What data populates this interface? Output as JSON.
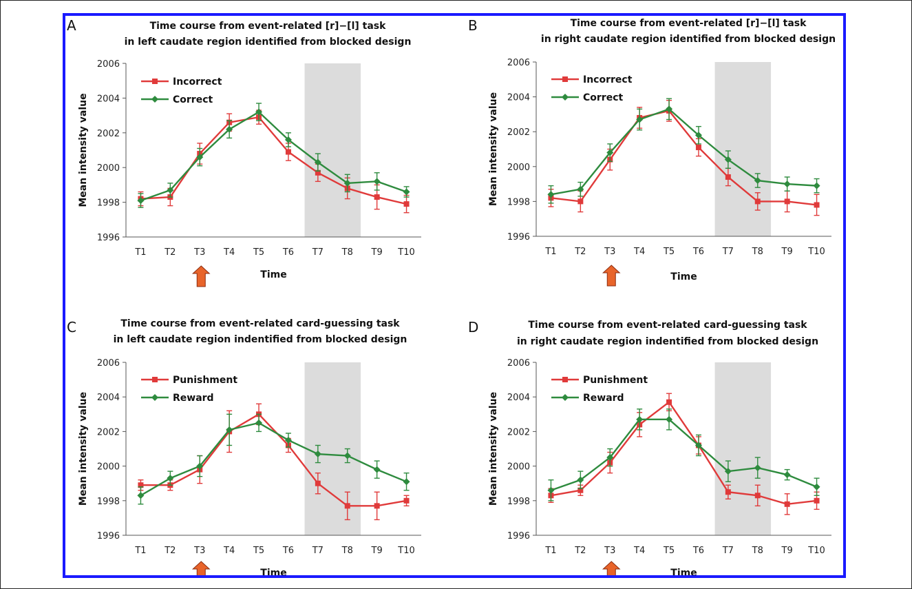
{
  "colors": {
    "red": "#e03a3a",
    "green": "#2e8b3e",
    "shade": "#dcdcdc",
    "arrow": "#e8642a",
    "border": "#1a1aff"
  },
  "chart_data": [
    {
      "type": "line",
      "panel": "A",
      "title": [
        "Time course from event-related [r]−[l]  task",
        "in left caudate region identified from blocked design"
      ],
      "xlabel": "Time",
      "ylabel": "Mean intensity value",
      "categories": [
        "T1",
        "T2",
        "T3",
        "T4",
        "T5",
        "T6",
        "T7",
        "T8",
        "T9",
        "T10"
      ],
      "ylim": [
        1996,
        2006
      ],
      "yticks": [
        "1996",
        "1998",
        "2000",
        "2002",
        "2004",
        "2006"
      ],
      "shaded_range": [
        "T7",
        "T8"
      ],
      "arrow_at": "T3",
      "legend_position": "top-left",
      "series": [
        {
          "name": "Incorrect",
          "color": "red",
          "marker": "square",
          "values": [
            1998.2,
            1998.3,
            2000.8,
            2002.6,
            2002.9,
            2000.9,
            1999.7,
            1998.8,
            1998.3,
            1997.9
          ],
          "errors": [
            0.4,
            0.5,
            0.6,
            0.5,
            0.4,
            0.5,
            0.5,
            0.6,
            0.7,
            0.5
          ]
        },
        {
          "name": "Correct",
          "color": "green",
          "marker": "diamond",
          "values": [
            1998.1,
            1998.7,
            2000.6,
            2002.2,
            2003.2,
            2001.6,
            2000.3,
            1999.1,
            1999.2,
            1998.6
          ],
          "errors": [
            0.4,
            0.4,
            0.5,
            0.5,
            0.5,
            0.4,
            0.5,
            0.5,
            0.5,
            0.3
          ]
        }
      ]
    },
    {
      "type": "line",
      "panel": "B",
      "title": [
        "Time course from event-related [r]−[l]  task",
        "in right caudate region identified from blocked design"
      ],
      "xlabel": "Time",
      "ylabel": "Mean intensity value",
      "categories": [
        "T1",
        "T2",
        "T3",
        "T4",
        "T5",
        "T6",
        "T7",
        "T8",
        "T9",
        "T10"
      ],
      "ylim": [
        1996,
        2006
      ],
      "yticks": [
        "1996",
        "1998",
        "2000",
        "2002",
        "2004",
        "2006"
      ],
      "shaded_range": [
        "T7",
        "T8"
      ],
      "arrow_at": "T3",
      "legend_position": "top-left",
      "series": [
        {
          "name": "Incorrect",
          "color": "red",
          "marker": "square",
          "values": [
            1998.2,
            1998.0,
            2000.4,
            2002.8,
            2003.2,
            2001.1,
            1999.4,
            1998.0,
            1998.0,
            1997.8
          ],
          "errors": [
            0.5,
            0.6,
            0.6,
            0.6,
            0.6,
            0.5,
            0.5,
            0.5,
            0.6,
            0.6
          ]
        },
        {
          "name": "Correct",
          "color": "green",
          "marker": "diamond",
          "values": [
            1998.4,
            1998.7,
            2000.8,
            2002.7,
            2003.3,
            2001.8,
            2000.4,
            1999.2,
            1999.0,
            1998.9
          ],
          "errors": [
            0.5,
            0.4,
            0.5,
            0.6,
            0.6,
            0.5,
            0.5,
            0.4,
            0.4,
            0.4
          ]
        }
      ]
    },
    {
      "type": "line",
      "panel": "C",
      "title": [
        "Time course from event-related card-guessing task",
        "in left caudate region indentified from blocked design"
      ],
      "xlabel": "Time",
      "ylabel": "Mean intensity value",
      "categories": [
        "T1",
        "T2",
        "T3",
        "T4",
        "T5",
        "T6",
        "T7",
        "T8",
        "T9",
        "T10"
      ],
      "ylim": [
        1996,
        2006
      ],
      "yticks": [
        "1996",
        "1998",
        "2000",
        "2002",
        "2004",
        "2006"
      ],
      "shaded_range": [
        "T7",
        "T8"
      ],
      "arrow_at": "T3",
      "legend_position": "top-left",
      "series": [
        {
          "name": "Punishment",
          "color": "red",
          "marker": "square",
          "values": [
            1998.9,
            1998.9,
            1999.8,
            2002.0,
            2003.0,
            2001.2,
            1999.0,
            1997.7,
            1997.7,
            1998.0
          ],
          "errors": [
            0.3,
            0.3,
            0.8,
            1.2,
            0.6,
            0.4,
            0.6,
            0.8,
            0.8,
            0.3
          ]
        },
        {
          "name": "Reward",
          "color": "green",
          "marker": "diamond",
          "values": [
            1998.3,
            1999.3,
            2000.0,
            2002.1,
            2002.5,
            2001.5,
            2000.7,
            2000.6,
            1999.8,
            1999.1
          ],
          "errors": [
            0.5,
            0.4,
            0.6,
            0.9,
            0.5,
            0.4,
            0.5,
            0.4,
            0.5,
            0.5
          ]
        }
      ]
    },
    {
      "type": "line",
      "panel": "D",
      "title": [
        "Time course from event-related card-guessing task",
        "in right caudate region indentified from blocked design"
      ],
      "xlabel": "Time",
      "ylabel": "Mean intensity value",
      "categories": [
        "T1",
        "T2",
        "T3",
        "T4",
        "T5",
        "T6",
        "T7",
        "T8",
        "T9",
        "T10"
      ],
      "ylim": [
        1996,
        2006
      ],
      "yticks": [
        "1996",
        "1998",
        "2000",
        "2002",
        "2004",
        "2006"
      ],
      "shaded_range": [
        "T7",
        "T8"
      ],
      "arrow_at": "T3",
      "legend_position": "top-left",
      "series": [
        {
          "name": "Punishment",
          "color": "red",
          "marker": "square",
          "values": [
            1998.3,
            1998.6,
            2000.2,
            2002.4,
            2003.7,
            2001.2,
            1998.5,
            1998.3,
            1997.8,
            1998.0
          ],
          "errors": [
            0.4,
            0.3,
            0.6,
            0.7,
            0.5,
            0.5,
            0.4,
            0.6,
            0.6,
            0.5
          ]
        },
        {
          "name": "Reward",
          "color": "green",
          "marker": "diamond",
          "values": [
            1998.6,
            1999.2,
            2000.5,
            2002.7,
            2002.7,
            2001.2,
            1999.7,
            1999.9,
            1999.5,
            1998.8
          ],
          "errors": [
            0.6,
            0.5,
            0.5,
            0.6,
            0.6,
            0.6,
            0.6,
            0.6,
            0.3,
            0.5
          ]
        }
      ]
    }
  ]
}
